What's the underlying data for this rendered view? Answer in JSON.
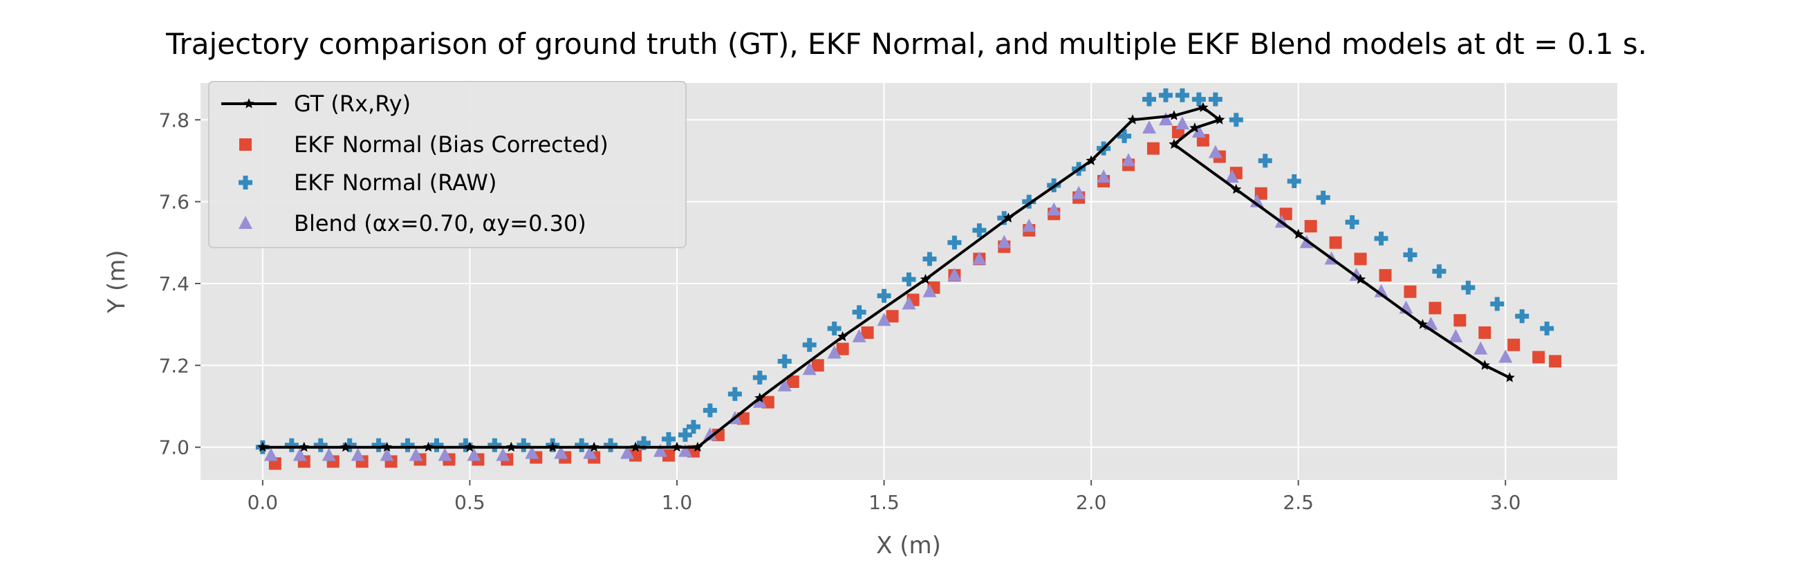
{
  "chart_data": {
    "type": "scatter",
    "title": "Trajectory comparison of ground truth (GT), EKF Normal, and multiple EKF Blend models at dt = 0.1 s.",
    "xlabel": "X (m)",
    "ylabel": "Y (m)",
    "xlim": [
      -0.15,
      3.27
    ],
    "ylim": [
      6.92,
      7.89
    ],
    "xticks": [
      0.0,
      0.5,
      1.0,
      1.5,
      2.0,
      2.5,
      3.0
    ],
    "xtick_labels": [
      "0.0",
      "0.5",
      "1.0",
      "1.5",
      "2.0",
      "2.5",
      "3.0"
    ],
    "yticks": [
      7.0,
      7.2,
      7.4,
      7.6,
      7.8
    ],
    "ytick_labels": [
      "7.0",
      "7.2",
      "7.4",
      "7.6",
      "7.8"
    ],
    "grid": true,
    "legend_position": "top-left",
    "background": "#e5e5e5",
    "series": [
      {
        "name": "GT (Rx,Ry)",
        "marker": "star-line",
        "color": "#000000",
        "x": [
          0.0,
          0.1,
          0.2,
          0.3,
          0.4,
          0.5,
          0.6,
          0.7,
          0.8,
          0.9,
          1.0,
          1.05,
          1.2,
          1.4,
          1.6,
          1.8,
          2.0,
          2.1,
          2.2,
          2.27,
          2.31,
          2.25,
          2.2,
          2.35,
          2.5,
          2.65,
          2.8,
          2.95,
          3.01
        ],
        "y": [
          7.0,
          7.0,
          7.0,
          7.0,
          7.0,
          7.0,
          7.0,
          7.0,
          7.0,
          7.0,
          7.0,
          7.0,
          7.12,
          7.27,
          7.41,
          7.56,
          7.7,
          7.8,
          7.81,
          7.83,
          7.8,
          7.78,
          7.74,
          7.63,
          7.52,
          7.41,
          7.3,
          7.2,
          7.17
        ]
      },
      {
        "name": "EKF Normal (Bias Corrected)",
        "marker": "square",
        "color": "#e24a33",
        "x": [
          0.03,
          0.1,
          0.17,
          0.24,
          0.31,
          0.38,
          0.45,
          0.52,
          0.59,
          0.66,
          0.73,
          0.8,
          0.9,
          0.98,
          1.04,
          1.1,
          1.16,
          1.22,
          1.28,
          1.34,
          1.4,
          1.46,
          1.52,
          1.57,
          1.62,
          1.67,
          1.73,
          1.79,
          1.85,
          1.91,
          1.97,
          2.03,
          2.09,
          2.15,
          2.21,
          2.27,
          2.31,
          2.35,
          2.41,
          2.47,
          2.53,
          2.59,
          2.65,
          2.71,
          2.77,
          2.83,
          2.89,
          2.95,
          3.02,
          3.08,
          3.12
        ],
        "y": [
          6.96,
          6.965,
          6.965,
          6.965,
          6.965,
          6.97,
          6.97,
          6.97,
          6.97,
          6.975,
          6.975,
          6.975,
          6.98,
          6.98,
          6.99,
          7.03,
          7.07,
          7.11,
          7.16,
          7.2,
          7.24,
          7.28,
          7.32,
          7.36,
          7.39,
          7.42,
          7.46,
          7.49,
          7.53,
          7.57,
          7.61,
          7.65,
          7.69,
          7.73,
          7.77,
          7.75,
          7.71,
          7.67,
          7.62,
          7.57,
          7.54,
          7.5,
          7.46,
          7.42,
          7.38,
          7.34,
          7.31,
          7.28,
          7.25,
          7.22,
          7.21
        ]
      },
      {
        "name": "EKF Normal (RAW)",
        "marker": "plus",
        "color": "#348abd",
        "x": [
          0.0,
          0.07,
          0.14,
          0.21,
          0.28,
          0.35,
          0.42,
          0.49,
          0.56,
          0.63,
          0.7,
          0.77,
          0.84,
          0.92,
          0.98,
          1.02,
          1.04,
          1.08,
          1.14,
          1.2,
          1.26,
          1.32,
          1.38,
          1.44,
          1.5,
          1.56,
          1.61,
          1.67,
          1.73,
          1.79,
          1.85,
          1.91,
          1.97,
          2.03,
          2.08,
          2.14,
          2.18,
          2.22,
          2.26,
          2.3,
          2.35,
          2.42,
          2.49,
          2.56,
          2.63,
          2.7,
          2.77,
          2.84,
          2.91,
          2.98,
          3.04,
          3.1
        ],
        "y": [
          7.0,
          7.005,
          7.005,
          7.005,
          7.005,
          7.005,
          7.005,
          7.005,
          7.005,
          7.005,
          7.005,
          7.005,
          7.005,
          7.01,
          7.02,
          7.03,
          7.05,
          7.09,
          7.13,
          7.17,
          7.21,
          7.25,
          7.29,
          7.33,
          7.37,
          7.41,
          7.46,
          7.5,
          7.53,
          7.56,
          7.6,
          7.64,
          7.68,
          7.73,
          7.76,
          7.85,
          7.86,
          7.86,
          7.85,
          7.85,
          7.8,
          7.7,
          7.65,
          7.61,
          7.55,
          7.51,
          7.47,
          7.43,
          7.39,
          7.35,
          7.32,
          7.29
        ]
      },
      {
        "name": "Blend (αx=0.70, αy=0.30)",
        "marker": "triangle",
        "color": "#988ed5",
        "x": [
          0.02,
          0.09,
          0.16,
          0.23,
          0.3,
          0.37,
          0.44,
          0.51,
          0.58,
          0.65,
          0.72,
          0.79,
          0.88,
          0.96,
          1.02,
          1.08,
          1.14,
          1.2,
          1.26,
          1.32,
          1.38,
          1.44,
          1.5,
          1.56,
          1.61,
          1.67,
          1.73,
          1.79,
          1.85,
          1.91,
          1.97,
          2.03,
          2.09,
          2.14,
          2.18,
          2.22,
          2.26,
          2.3,
          2.34,
          2.4,
          2.46,
          2.52,
          2.58,
          2.64,
          2.7,
          2.76,
          2.82,
          2.88,
          2.94,
          3.0
        ],
        "y": [
          6.98,
          6.98,
          6.98,
          6.98,
          6.98,
          6.98,
          6.98,
          6.98,
          6.98,
          6.985,
          6.985,
          6.985,
          6.985,
          6.99,
          6.99,
          7.03,
          7.07,
          7.11,
          7.15,
          7.19,
          7.23,
          7.27,
          7.31,
          7.35,
          7.38,
          7.42,
          7.46,
          7.5,
          7.54,
          7.58,
          7.62,
          7.66,
          7.7,
          7.78,
          7.8,
          7.79,
          7.77,
          7.72,
          7.66,
          7.6,
          7.55,
          7.5,
          7.46,
          7.42,
          7.38,
          7.34,
          7.3,
          7.27,
          7.24,
          7.22
        ]
      }
    ]
  }
}
